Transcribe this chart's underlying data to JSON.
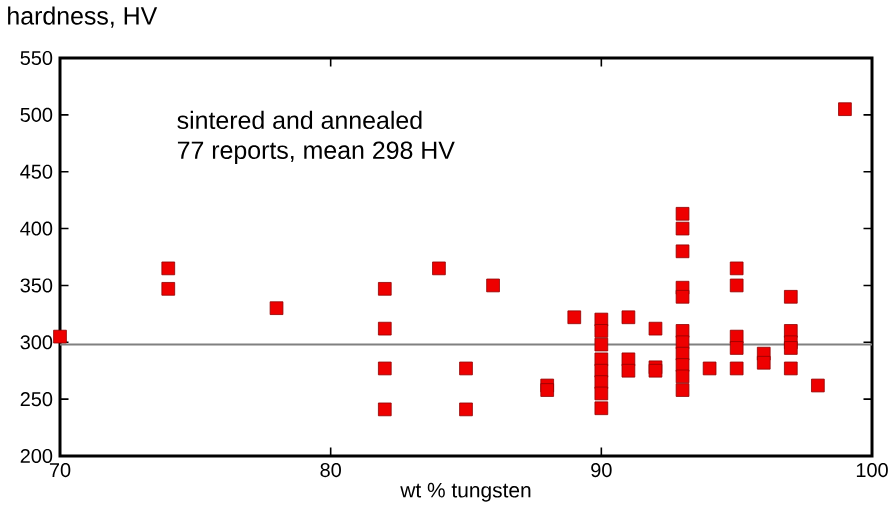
{
  "chart_data": {
    "type": "scatter",
    "ylabel": "hardness, HV",
    "xlabel": "wt % tungsten",
    "annotations": [
      "sintered and annealed",
      "77 reports, mean 298 HV"
    ],
    "x": [
      70,
      74,
      74,
      78,
      82,
      82,
      82,
      82,
      84,
      85,
      85,
      86,
      88,
      88,
      89,
      90,
      90,
      90,
      90,
      90,
      90,
      90,
      90,
      91,
      91,
      91,
      92,
      92,
      92,
      93,
      93,
      93,
      93,
      93,
      93,
      93,
      93,
      93,
      93,
      93,
      94,
      95,
      95,
      95,
      95,
      95,
      96,
      96,
      97,
      97,
      97,
      97,
      97,
      98,
      99
    ],
    "values": [
      305,
      365,
      347,
      330,
      347,
      312,
      277,
      241,
      365,
      277,
      241,
      350,
      262,
      258,
      322,
      320,
      310,
      298,
      285,
      275,
      265,
      255,
      242,
      322,
      285,
      275,
      312,
      278,
      275,
      413,
      400,
      380,
      348,
      340,
      310,
      300,
      290,
      280,
      270,
      258,
      277,
      365,
      350,
      305,
      295,
      277,
      290,
      282,
      340,
      310,
      300,
      295,
      277,
      262,
      505
    ],
    "color": "#ee0000",
    "marker": "square",
    "xlim": [
      70,
      100
    ],
    "xticks": [
      70,
      80,
      90,
      100
    ],
    "ylim": [
      200,
      550
    ],
    "yticks": [
      200,
      250,
      300,
      350,
      400,
      450,
      500,
      550
    ],
    "ref_lines": [
      {
        "axis": "y",
        "value": 298,
        "color": "#808080"
      }
    ],
    "grid": false
  }
}
